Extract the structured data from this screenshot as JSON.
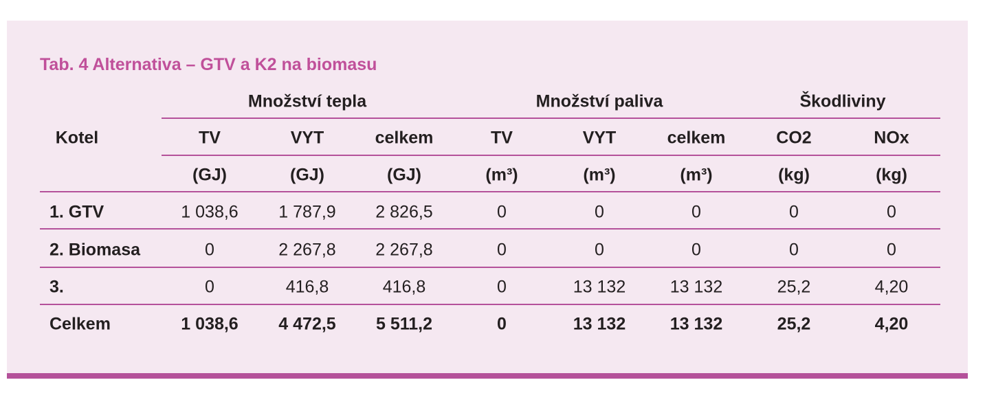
{
  "title": "Tab. 4 Alternativa – GTV a K2 na biomasu",
  "table": {
    "row_header": "Kotel",
    "groups": [
      "Množství tepla",
      "Množství paliva",
      "Škodliviny"
    ],
    "columns": [
      {
        "label": "TV",
        "unit": "(GJ)"
      },
      {
        "label": "VYT",
        "unit": "(GJ)"
      },
      {
        "label": "celkem",
        "unit": "(GJ)"
      },
      {
        "label": "TV",
        "unit": "(m³)"
      },
      {
        "label": "VYT",
        "unit": "(m³)"
      },
      {
        "label": "celkem",
        "unit": "(m³)"
      },
      {
        "label": "CO2",
        "unit": "(kg)"
      },
      {
        "label": "NOx",
        "unit": "(kg)"
      }
    ],
    "rows": [
      [
        "1. GTV",
        "1 038,6",
        "1 787,9",
        "2 826,5",
        "0",
        "0",
        "0",
        "0",
        "0"
      ],
      [
        "2. Biomasa",
        "0",
        "2 267,8",
        "2 267,8",
        "0",
        "0",
        "0",
        "0",
        "0"
      ],
      [
        "3.",
        "0",
        "416,8",
        "416,8",
        "0",
        "13 132",
        "13 132",
        "25,2",
        "4,20"
      ]
    ],
    "total": [
      "Celkem",
      "1 038,6",
      "4 472,5",
      "5 511,2",
      "0",
      "13 132",
      "13 132",
      "25,2",
      "4,20"
    ]
  }
}
